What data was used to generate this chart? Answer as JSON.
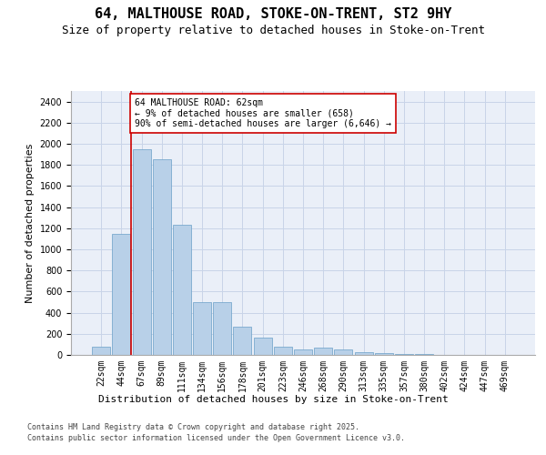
{
  "title_line1": "64, MALTHOUSE ROAD, STOKE-ON-TRENT, ST2 9HY",
  "title_line2": "Size of property relative to detached houses in Stoke-on-Trent",
  "xlabel": "Distribution of detached houses by size in Stoke-on-Trent",
  "ylabel": "Number of detached properties",
  "categories": [
    "22sqm",
    "44sqm",
    "67sqm",
    "89sqm",
    "111sqm",
    "134sqm",
    "156sqm",
    "178sqm",
    "201sqm",
    "223sqm",
    "246sqm",
    "268sqm",
    "290sqm",
    "313sqm",
    "335sqm",
    "357sqm",
    "380sqm",
    "402sqm",
    "424sqm",
    "447sqm",
    "469sqm"
  ],
  "values": [
    75,
    1150,
    1950,
    1850,
    1230,
    500,
    500,
    270,
    160,
    80,
    55,
    65,
    55,
    30,
    15,
    5,
    5,
    2,
    2,
    1,
    1
  ],
  "bar_color": "#b8d0e8",
  "bar_edge_color": "#6a9fc8",
  "vline_x_index": 1.5,
  "vline_color": "#cc0000",
  "annotation_text": "64 MALTHOUSE ROAD: 62sqm\n← 9% of detached houses are smaller (658)\n90% of semi-detached houses are larger (6,646) →",
  "annotation_box_facecolor": "#ffffff",
  "annotation_box_edgecolor": "#cc0000",
  "ylim": [
    0,
    2500
  ],
  "yticks": [
    0,
    200,
    400,
    600,
    800,
    1000,
    1200,
    1400,
    1600,
    1800,
    2000,
    2200,
    2400
  ],
  "grid_color": "#c8d4e8",
  "bg_color": "#eaeff8",
  "footer_line1": "Contains HM Land Registry data © Crown copyright and database right 2025.",
  "footer_line2": "Contains public sector information licensed under the Open Government Licence v3.0.",
  "title_fontsize": 11,
  "subtitle_fontsize": 9,
  "ylabel_fontsize": 8,
  "xlabel_fontsize": 8,
  "tick_fontsize": 7,
  "annot_fontsize": 7,
  "footer_fontsize": 6
}
